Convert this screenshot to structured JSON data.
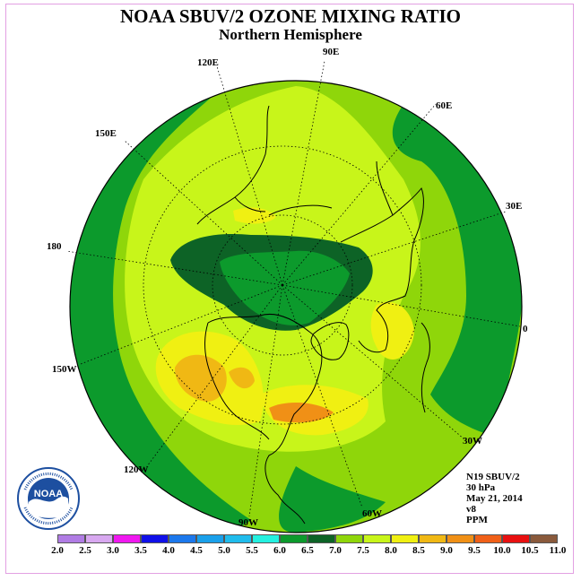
{
  "title": "NOAA SBUV/2 OZONE MIXING RATIO",
  "subtitle": "Northern Hemisphere",
  "longitude_labels": [
    {
      "id": "90e",
      "text": "90E"
    },
    {
      "id": "120e",
      "text": "120E"
    },
    {
      "id": "60e",
      "text": "60E"
    },
    {
      "id": "150e",
      "text": "150E"
    },
    {
      "id": "30e",
      "text": "30E"
    },
    {
      "id": "180",
      "text": "180"
    },
    {
      "id": "0",
      "text": "0"
    },
    {
      "id": "150w",
      "text": "150W"
    },
    {
      "id": "30w",
      "text": "30W"
    },
    {
      "id": "120w",
      "text": "120W"
    },
    {
      "id": "60w",
      "text": "60W"
    },
    {
      "id": "90w",
      "text": "90W"
    }
  ],
  "info": {
    "satellite": "N19 SBUV/2",
    "level": "30 hPa",
    "date": "May 21, 2014",
    "version": "v8",
    "units": "PPM"
  },
  "colors": {
    "c6_5_7": "#0c9a2c",
    "c7_7_5": "#0d6326",
    "c7_5_8": "#8fd60a",
    "c8_8_5": "#c8f51a",
    "c8_5_9": "#f0f012",
    "c9_9_5": "#f0b814",
    "c9_5_10": "#f09016",
    "background_land": "#000000"
  },
  "colorbar": {
    "ticks": [
      "2.0",
      "2.5",
      "3.0",
      "3.5",
      "4.0",
      "4.5",
      "5.0",
      "5.5",
      "6.0",
      "6.5",
      "7.0",
      "7.5",
      "8.0",
      "8.5",
      "9.0",
      "9.5",
      "10.0",
      "10.5",
      "11.0"
    ],
    "colors": [
      "#b07ce4",
      "#d8a8f0",
      "#f018f0",
      "#1010e8",
      "#1c78ec",
      "#1aa0ea",
      "#20bcec",
      "#24f0e0",
      "#0c9a2c",
      "#0d6326",
      "#8fd60a",
      "#c8f51a",
      "#f0f012",
      "#f0b814",
      "#f09016",
      "#f06018",
      "#e81010",
      "#8a5a3c"
    ]
  },
  "logo_text": "NOAA"
}
